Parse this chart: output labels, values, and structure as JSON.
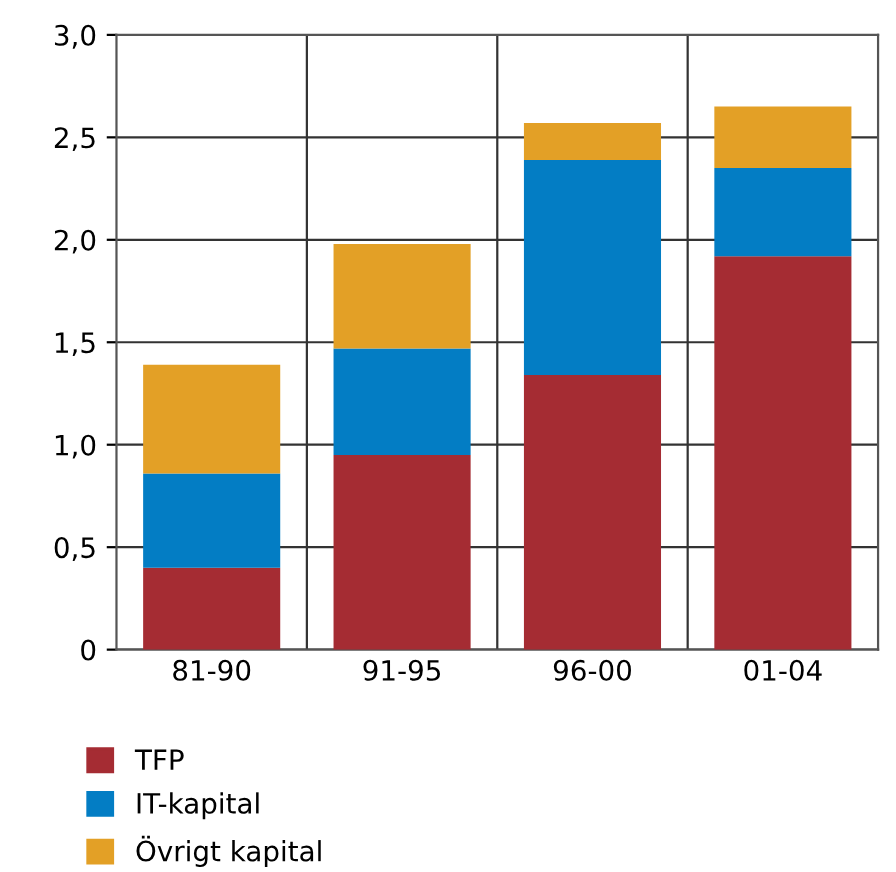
{
  "chart_data": {
    "type": "bar",
    "stacked": true,
    "categories": [
      "81-90",
      "91-95",
      "96-00",
      "01-04"
    ],
    "series": [
      {
        "name": "TFP",
        "color": "#a52c33",
        "values": [
          0.4,
          0.95,
          1.34,
          1.92
        ]
      },
      {
        "name": "IT-kapital",
        "color": "#037dc4",
        "values": [
          0.46,
          0.52,
          1.05,
          0.43
        ]
      },
      {
        "name": "Övrigt kapital",
        "color": "#e3a026",
        "values": [
          0.53,
          0.51,
          0.18,
          0.3
        ]
      }
    ],
    "ylim": [
      0,
      3
    ],
    "yticks": [
      {
        "value": 0,
        "label": "0"
      },
      {
        "value": 0.5,
        "label": "0,5"
      },
      {
        "value": 1,
        "label": "1,0"
      },
      {
        "value": 1.5,
        "label": "1,5"
      },
      {
        "value": 2,
        "label": "2,0"
      },
      {
        "value": 2.5,
        "label": "2,5"
      },
      {
        "value": 3,
        "label": "3,0"
      }
    ],
    "grid": true,
    "legend": "bottom"
  }
}
